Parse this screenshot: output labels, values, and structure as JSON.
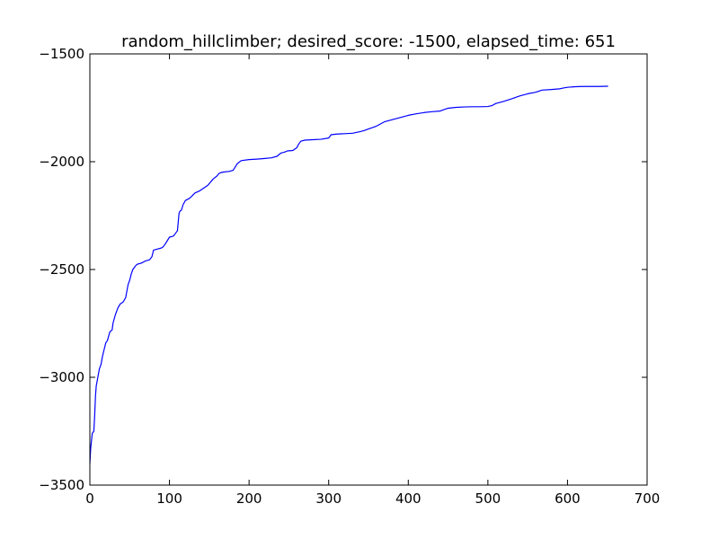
{
  "chart_data": {
    "type": "line",
    "title": "random_hillclimber; desired_score: -1500, elapsed_time: 651",
    "xlabel": "",
    "ylabel": "",
    "xlim": [
      0,
      700
    ],
    "ylim": [
      -3500,
      -1500
    ],
    "xticks": [
      0,
      100,
      200,
      300,
      400,
      500,
      600,
      700
    ],
    "yticks": [
      -3500,
      -3000,
      -2500,
      -2000,
      -1500
    ],
    "xtick_labels": [
      "0",
      "100",
      "200",
      "300",
      "400",
      "500",
      "600",
      "700"
    ],
    "ytick_labels": [
      "−3500",
      "−3000",
      "−2500",
      "−2000",
      "−1500"
    ],
    "grid": false,
    "legend": "none",
    "series_color": "#0000ff",
    "series": [
      {
        "x": [
          0,
          1,
          3,
          5,
          6,
          7,
          8,
          10,
          12,
          14,
          16,
          20,
          22,
          25,
          28,
          29,
          32,
          33,
          35,
          38,
          40,
          42,
          45,
          48,
          50,
          52,
          54,
          56,
          58,
          60,
          65,
          70,
          75,
          78,
          80,
          85,
          90,
          92,
          95,
          100,
          105,
          108,
          110,
          112,
          113,
          115,
          117,
          120,
          125,
          128,
          132,
          138,
          142,
          148,
          155,
          160,
          162,
          165,
          168,
          175,
          180,
          185,
          190,
          200,
          205,
          210,
          220,
          228,
          235,
          240,
          245,
          248,
          255,
          260,
          262,
          265,
          270,
          280,
          290,
          300,
          303,
          310,
          320,
          330,
          340,
          345,
          350,
          360,
          370,
          380,
          390,
          400,
          410,
          420,
          430,
          440,
          445,
          450,
          460,
          470,
          480,
          490,
          500,
          505,
          510,
          520,
          530,
          540,
          550,
          560,
          568,
          580,
          590,
          595,
          600,
          610,
          620,
          630,
          640,
          650,
          651
        ],
        "y": [
          -3400,
          -3330,
          -3260,
          -3250,
          -3180,
          -3090,
          -3040,
          -3000,
          -2960,
          -2940,
          -2900,
          -2840,
          -2830,
          -2790,
          -2780,
          -2750,
          -2710,
          -2700,
          -2680,
          -2660,
          -2655,
          -2650,
          -2630,
          -2570,
          -2550,
          -2520,
          -2500,
          -2490,
          -2480,
          -2475,
          -2470,
          -2460,
          -2455,
          -2440,
          -2410,
          -2405,
          -2400,
          -2395,
          -2380,
          -2350,
          -2345,
          -2330,
          -2320,
          -2240,
          -2230,
          -2225,
          -2200,
          -2180,
          -2170,
          -2160,
          -2145,
          -2135,
          -2125,
          -2110,
          -2080,
          -2065,
          -2055,
          -2050,
          -2048,
          -2045,
          -2040,
          -2010,
          -1995,
          -1990,
          -1989,
          -1988,
          -1985,
          -1982,
          -1975,
          -1960,
          -1955,
          -1950,
          -1948,
          -1935,
          -1920,
          -1905,
          -1900,
          -1898,
          -1896,
          -1890,
          -1875,
          -1872,
          -1870,
          -1868,
          -1860,
          -1855,
          -1848,
          -1835,
          -1815,
          -1805,
          -1795,
          -1785,
          -1778,
          -1772,
          -1768,
          -1765,
          -1758,
          -1752,
          -1748,
          -1746,
          -1745,
          -1745,
          -1744,
          -1740,
          -1730,
          -1720,
          -1708,
          -1695,
          -1685,
          -1678,
          -1668,
          -1665,
          -1662,
          -1658,
          -1655,
          -1652,
          -1651,
          -1651,
          -1651,
          -1650,
          -1650
        ]
      }
    ]
  }
}
